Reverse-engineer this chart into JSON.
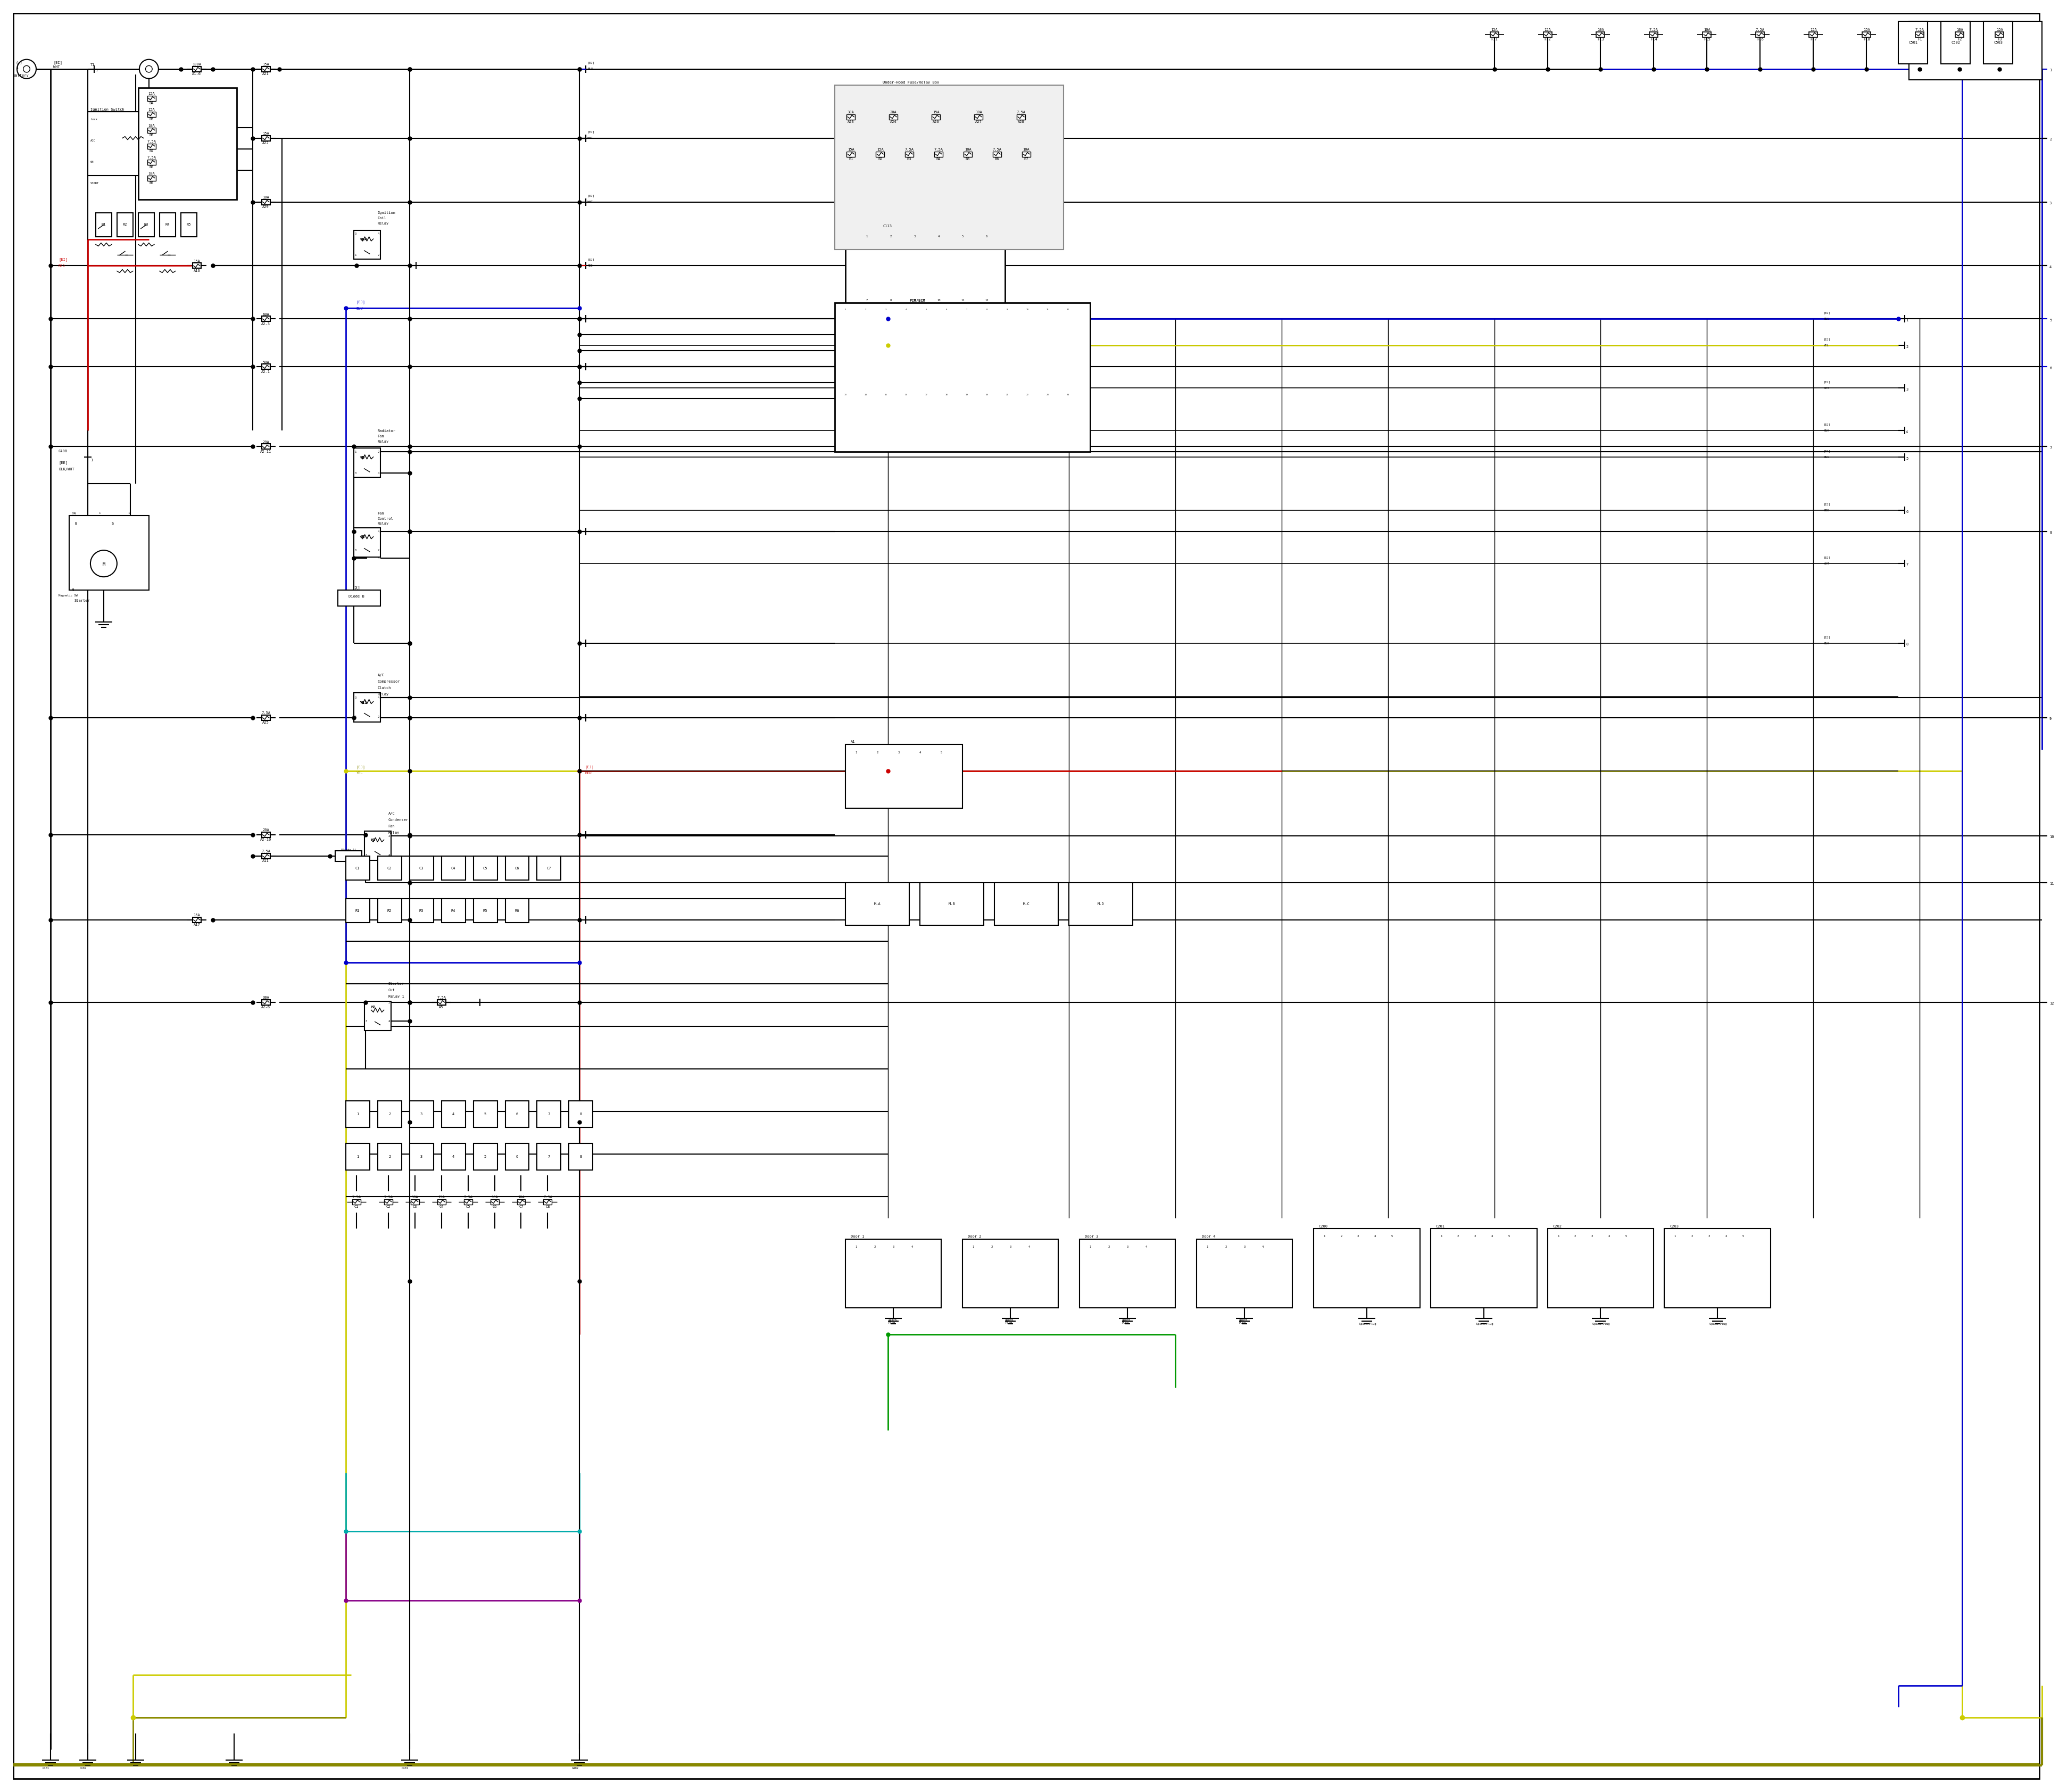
{
  "bg_color": "#ffffff",
  "bk": "#000000",
  "rd": "#cc0000",
  "bl": "#0000cc",
  "yl": "#cccc00",
  "gn": "#009900",
  "cy": "#00aaaa",
  "pu": "#880088",
  "gr": "#888888",
  "ol": "#888800",
  "lw": 2.0,
  "lw2": 1.5,
  "lw3": 1.0,
  "fs": 7,
  "fss": 6
}
